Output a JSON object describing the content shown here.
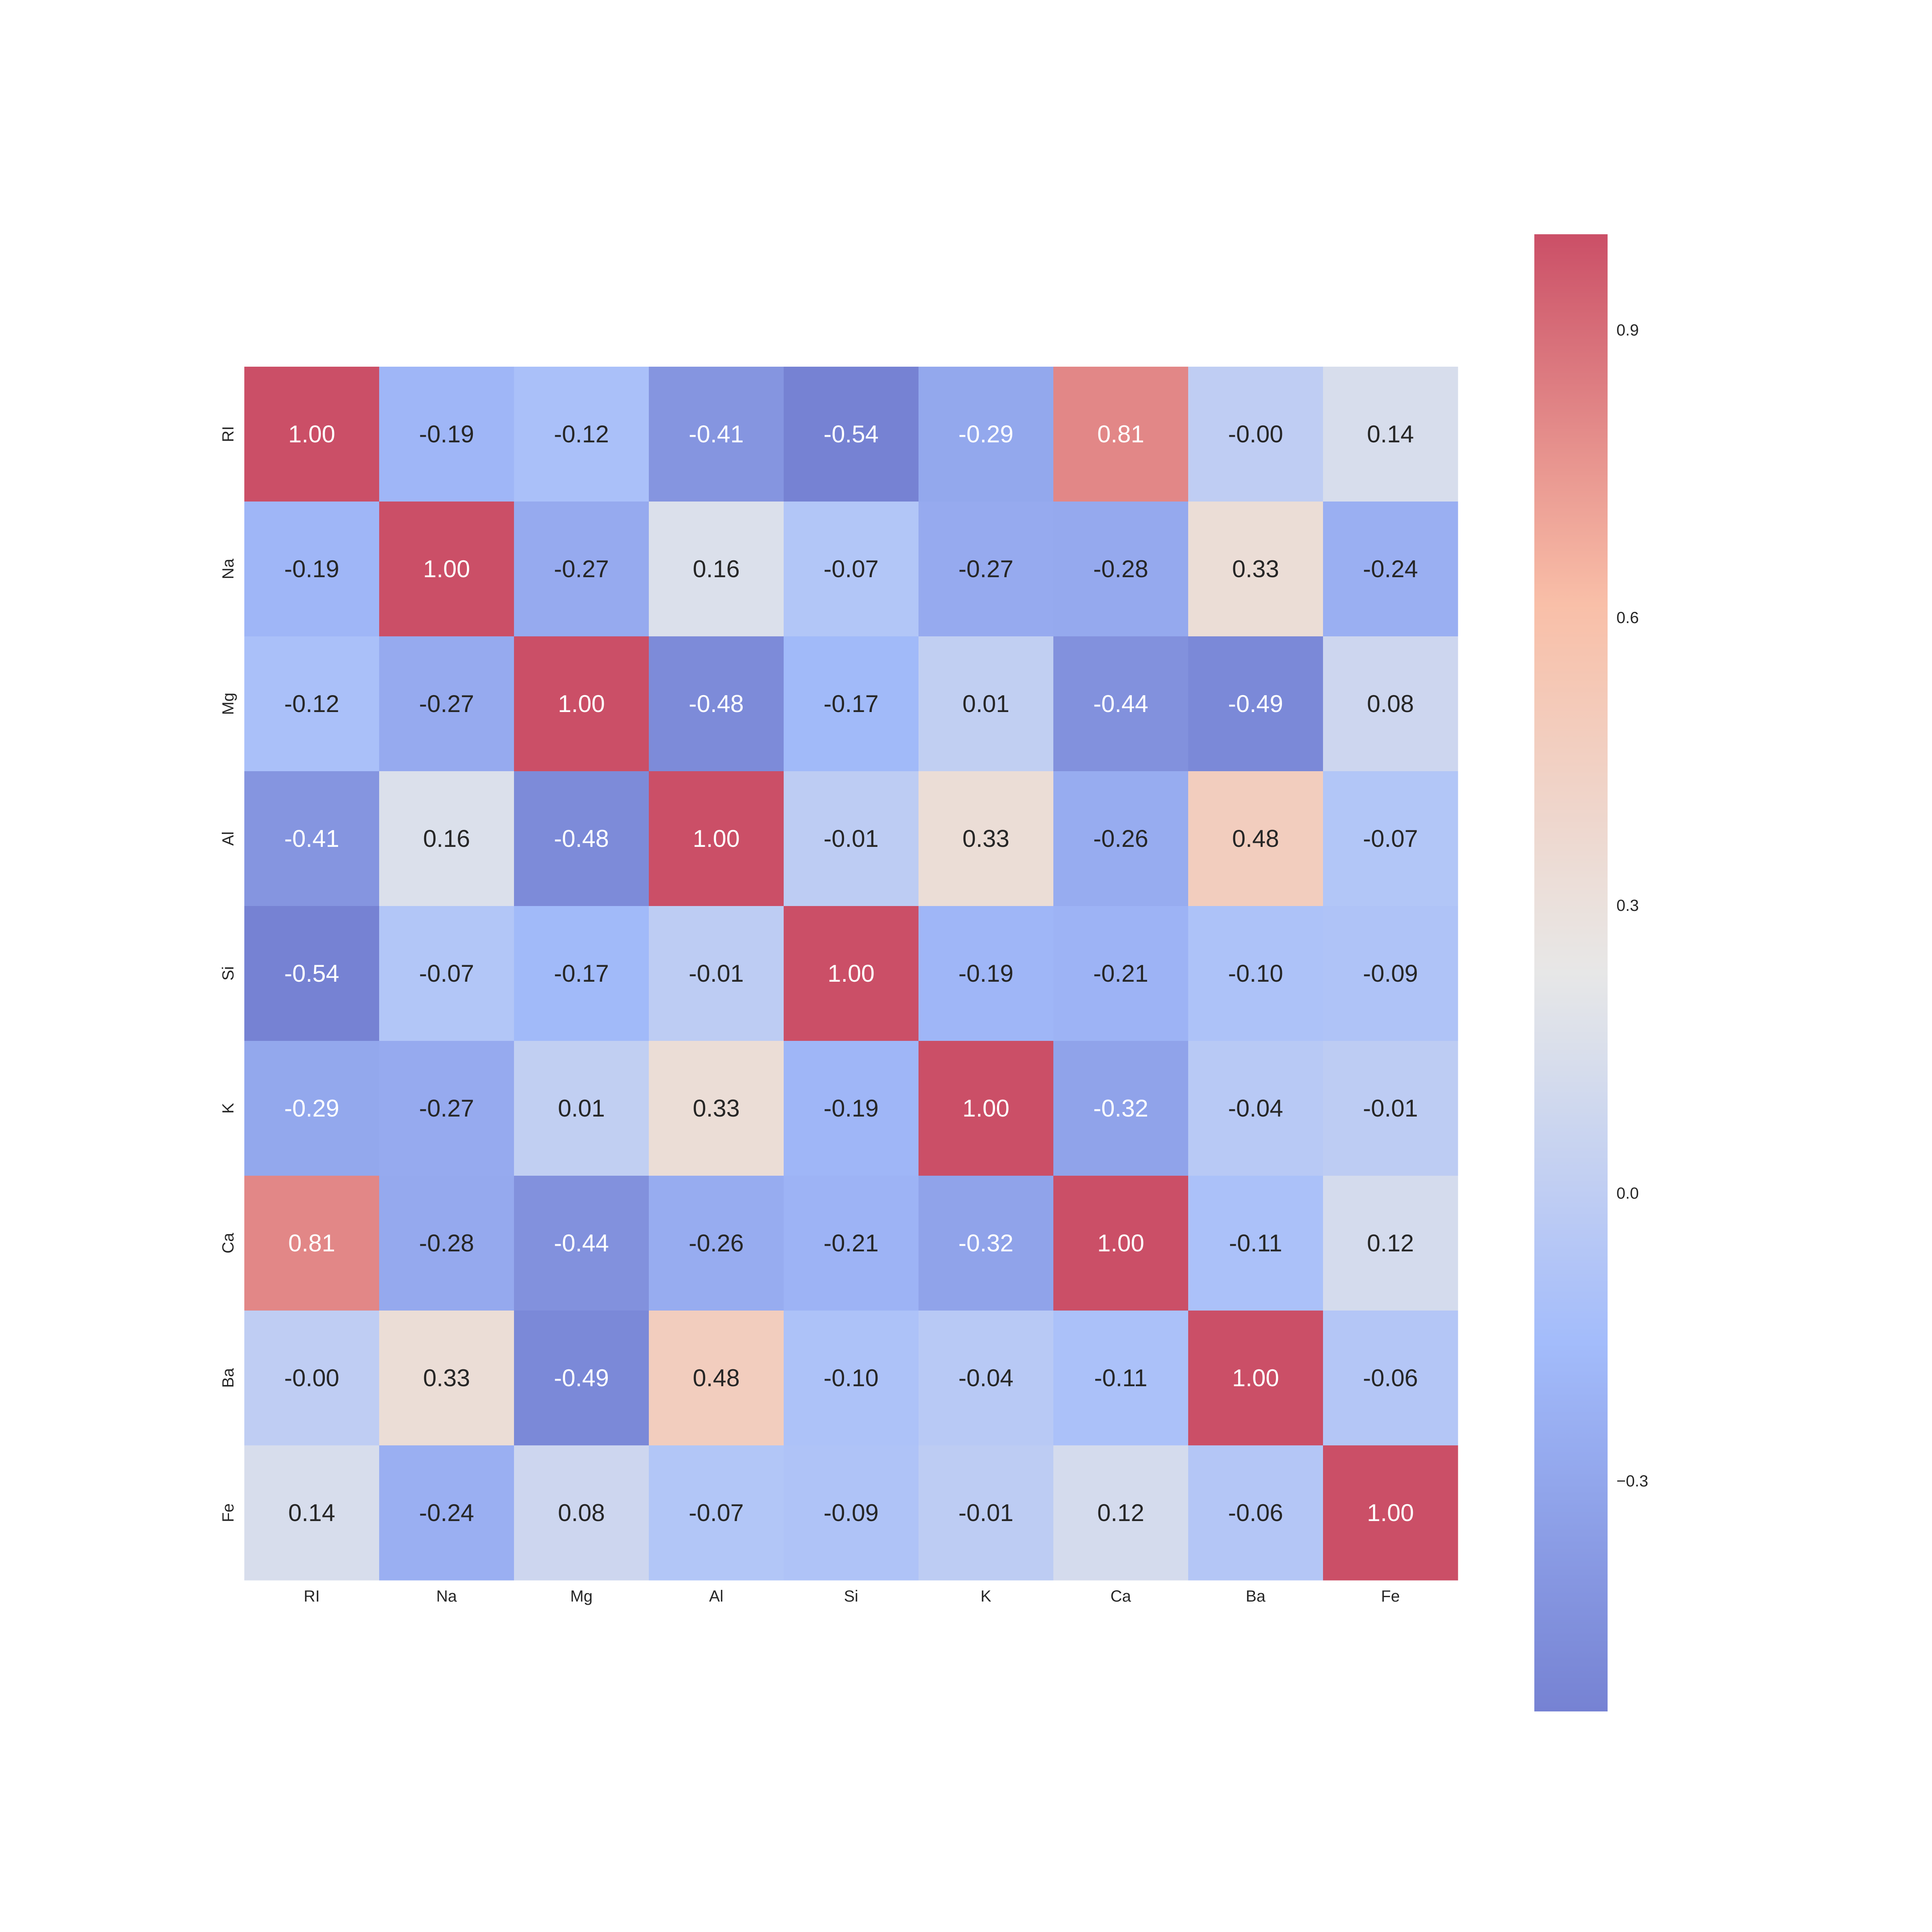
{
  "chart_data": {
    "type": "heatmap",
    "title": "",
    "xlabel": "",
    "ylabel": "",
    "x_categories": [
      "RI",
      "Na",
      "Mg",
      "Al",
      "Si",
      "K",
      "Ca",
      "Ba",
      "Fe"
    ],
    "y_categories": [
      "RI",
      "Na",
      "Mg",
      "Al",
      "Si",
      "K",
      "Ca",
      "Ba",
      "Fe"
    ],
    "values": [
      [
        1.0,
        -0.19,
        -0.12,
        -0.41,
        -0.54,
        -0.29,
        0.81,
        -0.0,
        0.14
      ],
      [
        -0.19,
        1.0,
        -0.27,
        0.16,
        -0.07,
        -0.27,
        -0.28,
        0.33,
        -0.24
      ],
      [
        -0.12,
        -0.27,
        1.0,
        -0.48,
        -0.17,
        0.01,
        -0.44,
        -0.49,
        0.08
      ],
      [
        -0.41,
        0.16,
        -0.48,
        1.0,
        -0.01,
        0.33,
        -0.26,
        0.48,
        -0.07
      ],
      [
        -0.54,
        -0.07,
        -0.17,
        -0.01,
        1.0,
        -0.19,
        -0.21,
        -0.1,
        -0.09
      ],
      [
        -0.29,
        -0.27,
        0.01,
        0.33,
        -0.19,
        1.0,
        -0.32,
        -0.04,
        -0.01
      ],
      [
        0.81,
        -0.28,
        -0.44,
        -0.26,
        -0.21,
        -0.32,
        1.0,
        -0.11,
        0.12
      ],
      [
        -0.0,
        0.33,
        -0.49,
        0.48,
        -0.1,
        -0.04,
        -0.11,
        1.0,
        -0.06
      ],
      [
        0.14,
        -0.24,
        0.08,
        -0.07,
        -0.09,
        -0.01,
        0.12,
        -0.06,
        1.0
      ]
    ],
    "value_labels": [
      [
        "1.00",
        "-0.19",
        "-0.12",
        "-0.41",
        "-0.54",
        "-0.29",
        "0.81",
        "-0.00",
        "0.14"
      ],
      [
        "-0.19",
        "1.00",
        "-0.27",
        "0.16",
        "-0.07",
        "-0.27",
        "-0.28",
        "0.33",
        "-0.24"
      ],
      [
        "-0.12",
        "-0.27",
        "1.00",
        "-0.48",
        "-0.17",
        "0.01",
        "-0.44",
        "-0.49",
        "0.08"
      ],
      [
        "-0.41",
        "0.16",
        "-0.48",
        "1.00",
        "-0.01",
        "0.33",
        "-0.26",
        "0.48",
        "-0.07"
      ],
      [
        "-0.54",
        "-0.07",
        "-0.17",
        "-0.01",
        "1.00",
        "-0.19",
        "-0.21",
        "-0.10",
        "-0.09"
      ],
      [
        "-0.29",
        "-0.27",
        "0.01",
        "0.33",
        "-0.19",
        "1.00",
        "-0.32",
        "-0.04",
        "-0.01"
      ],
      [
        "0.81",
        "-0.28",
        "-0.44",
        "-0.26",
        "-0.21",
        "-0.32",
        "1.00",
        "-0.11",
        "0.12"
      ],
      [
        "-0.00",
        "0.33",
        "-0.49",
        "0.48",
        "-0.10",
        "-0.04",
        "-0.11",
        "1.00",
        "-0.06"
      ],
      [
        "0.14",
        "-0.24",
        "0.08",
        "-0.07",
        "-0.09",
        "-0.01",
        "0.12",
        "-0.06",
        "1.00"
      ]
    ],
    "colorbar": {
      "colormap": "coolwarm",
      "range": [
        -0.54,
        1.0
      ],
      "ticks": [
        0.9,
        0.6,
        0.3,
        0.0,
        -0.3
      ],
      "tick_labels": [
        "0.9",
        "0.6",
        "0.3",
        "0.0",
        "−0.3"
      ],
      "placement": "right"
    },
    "grid": false,
    "legend": "none"
  }
}
